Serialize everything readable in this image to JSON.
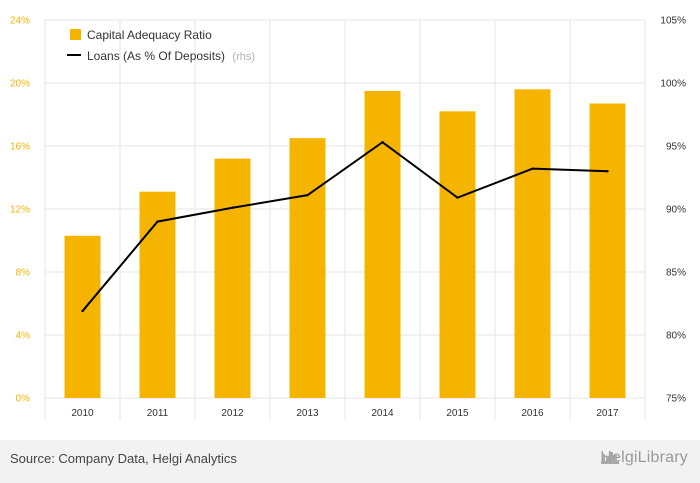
{
  "chart_data": {
    "type": "bar+line",
    "categories": [
      "2010",
      "2011",
      "2012",
      "2013",
      "2014",
      "2015",
      "2016",
      "2017"
    ],
    "series": [
      {
        "name": "Capital Adequacy Ratio",
        "type": "bar",
        "axis": "left",
        "color": "#f5b400",
        "values": [
          10.3,
          13.1,
          15.2,
          16.5,
          19.5,
          18.2,
          19.6,
          18.7
        ]
      },
      {
        "name": "Loans (As % Of Deposits)",
        "name_suffix": "(rhs)",
        "type": "line",
        "axis": "right",
        "color": "#000000",
        "values": [
          81.9,
          89.0,
          90.1,
          91.1,
          95.3,
          90.9,
          93.2,
          93.0
        ]
      }
    ],
    "y_left": {
      "min": 0,
      "max": 24,
      "ticks": [
        "0%",
        "4%",
        "8%",
        "12%",
        "16%",
        "20%",
        "24%"
      ]
    },
    "y_right": {
      "min": 75,
      "max": 105,
      "ticks": [
        "75%",
        "80%",
        "85%",
        "90%",
        "95%",
        "100%",
        "105%"
      ]
    },
    "grid": true,
    "legend": "top-left"
  },
  "footer": {
    "source": "Source: Company Data, Helgi Analytics",
    "brand": "HelgiLibrary"
  },
  "colors": {
    "bar": "#f5b400",
    "line": "#000000",
    "grid": "#e6e6e6",
    "footer_bg": "#f2f2f2"
  }
}
